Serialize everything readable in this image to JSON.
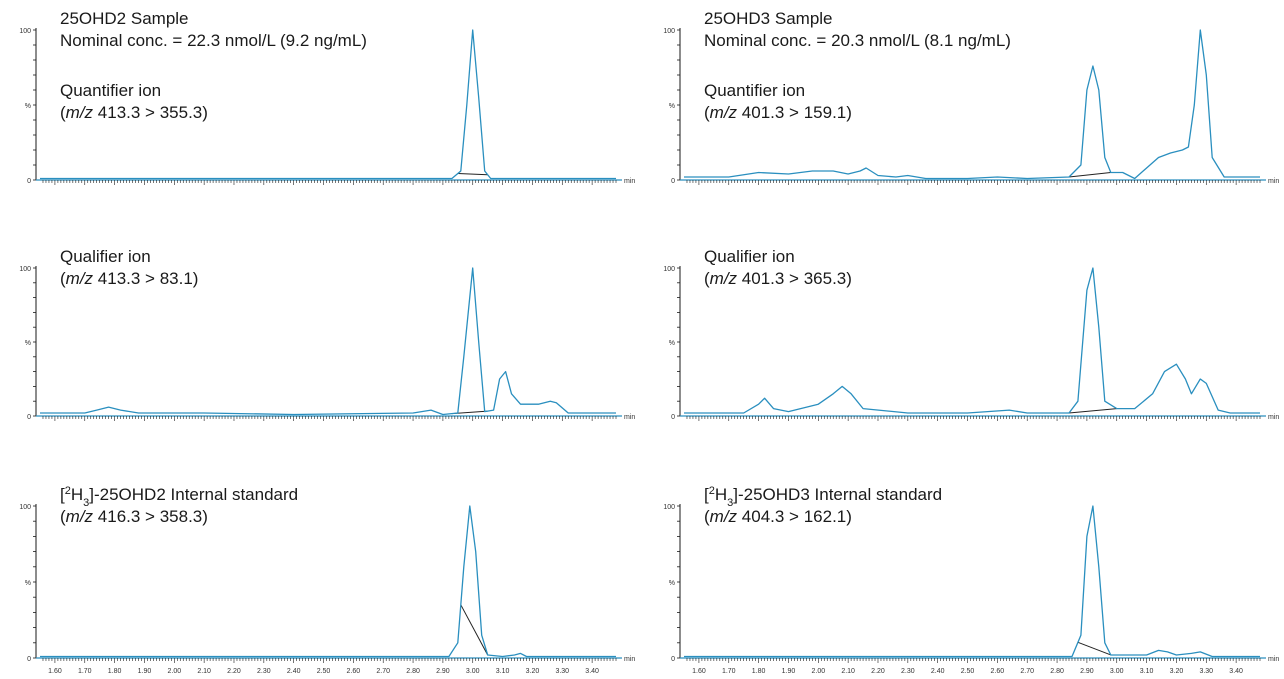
{
  "trace_color": "#2a8fbf",
  "axis_color": "#1a1a1a",
  "baseline_color": "#222222",
  "x_unit": "min",
  "y_label": "%",
  "y_ticks": [
    "100",
    "0"
  ],
  "x_tick_labels": [
    "1.60",
    "1.70",
    "1.80",
    "1.90",
    "2.00",
    "2.10",
    "2.20",
    "2.30",
    "2.40",
    "2.50",
    "2.60",
    "2.70",
    "2.80",
    "2.90",
    "3.00",
    "3.10",
    "3.20",
    "3.30",
    "3.40"
  ],
  "chart_data": [
    {
      "type": "line",
      "title_lines": [
        "25OHD2 Sample",
        "Nominal conc. = 22.3 nmol/L (9.2 ng/mL)"
      ],
      "ion_label": "Quantifier ion",
      "transition": {
        "prefix": "(",
        "mz": "m/z",
        "rest": " 413.3 > 355.3)"
      },
      "xlim": [
        1.55,
        3.48
      ],
      "ylim": [
        0,
        100
      ],
      "series": [
        {
          "points": [
            [
              1.55,
              1
            ],
            [
              2.85,
              1
            ],
            [
              2.93,
              1
            ],
            [
              2.96,
              6
            ],
            [
              2.98,
              50
            ],
            [
              3.0,
              100
            ],
            [
              3.02,
              55
            ],
            [
              3.04,
              6
            ],
            [
              3.06,
              1
            ],
            [
              3.48,
              1
            ]
          ]
        }
      ],
      "integration": [
        2.95,
        3.05
      ]
    },
    {
      "type": "line",
      "title_lines": [
        "25OHD3 Sample",
        "Nominal conc. = 20.3 nmol/L (8.1 ng/mL)"
      ],
      "ion_label": "Quantifier ion",
      "transition": {
        "prefix": "(",
        "mz": "m/z",
        "rest": " 401.3 > 159.1)"
      },
      "xlim": [
        1.55,
        3.48
      ],
      "ylim": [
        0,
        100
      ],
      "series": [
        {
          "points": [
            [
              1.55,
              2
            ],
            [
              1.7,
              2
            ],
            [
              1.8,
              5
            ],
            [
              1.9,
              4
            ],
            [
              1.98,
              6
            ],
            [
              2.05,
              6
            ],
            [
              2.1,
              4
            ],
            [
              2.14,
              6
            ],
            [
              2.16,
              8
            ],
            [
              2.2,
              3
            ],
            [
              2.26,
              2
            ],
            [
              2.3,
              3
            ],
            [
              2.36,
              1
            ],
            [
              2.5,
              1
            ],
            [
              2.6,
              2
            ],
            [
              2.7,
              1
            ],
            [
              2.84,
              2
            ],
            [
              2.88,
              10
            ],
            [
              2.9,
              60
            ],
            [
              2.92,
              76
            ],
            [
              2.94,
              60
            ],
            [
              2.96,
              15
            ],
            [
              2.98,
              5
            ],
            [
              3.02,
              5
            ],
            [
              3.06,
              1
            ],
            [
              3.1,
              8
            ],
            [
              3.14,
              15
            ],
            [
              3.18,
              18
            ],
            [
              3.22,
              20
            ],
            [
              3.24,
              22
            ],
            [
              3.26,
              50
            ],
            [
              3.28,
              100
            ],
            [
              3.3,
              70
            ],
            [
              3.32,
              15
            ],
            [
              3.36,
              2
            ],
            [
              3.48,
              2
            ]
          ]
        }
      ],
      "integration": [
        2.84,
        2.98
      ]
    },
    {
      "type": "line",
      "title_lines": [
        "Qualifier ion"
      ],
      "ion_label": "",
      "transition": {
        "prefix": " (",
        "mz": "m/z",
        "rest": " 413.3 > 83.1)"
      },
      "xlim": [
        1.55,
        3.48
      ],
      "ylim": [
        0,
        100
      ],
      "series": [
        {
          "points": [
            [
              1.55,
              2
            ],
            [
              1.7,
              2
            ],
            [
              1.74,
              4
            ],
            [
              1.78,
              6
            ],
            [
              1.82,
              4
            ],
            [
              1.88,
              2
            ],
            [
              2.1,
              2
            ],
            [
              2.4,
              1
            ],
            [
              2.8,
              2
            ],
            [
              2.86,
              4
            ],
            [
              2.9,
              1
            ],
            [
              2.95,
              2
            ],
            [
              2.97,
              40
            ],
            [
              3.0,
              100
            ],
            [
              3.02,
              50
            ],
            [
              3.04,
              3
            ],
            [
              3.07,
              4
            ],
            [
              3.09,
              25
            ],
            [
              3.11,
              30
            ],
            [
              3.13,
              15
            ],
            [
              3.16,
              8
            ],
            [
              3.22,
              8
            ],
            [
              3.26,
              10
            ],
            [
              3.28,
              9
            ],
            [
              3.32,
              2
            ],
            [
              3.48,
              2
            ]
          ]
        }
      ],
      "integration": [
        2.93,
        3.05
      ]
    },
    {
      "type": "line",
      "title_lines": [
        "Qualifier ion"
      ],
      "ion_label": "",
      "transition": {
        "prefix": "(",
        "mz": "m/z",
        "rest": " 401.3 > 365.3)"
      },
      "xlim": [
        1.55,
        3.48
      ],
      "ylim": [
        0,
        100
      ],
      "series": [
        {
          "points": [
            [
              1.55,
              2
            ],
            [
              1.75,
              2
            ],
            [
              1.8,
              8
            ],
            [
              1.82,
              12
            ],
            [
              1.85,
              5
            ],
            [
              1.9,
              3
            ],
            [
              2.0,
              8
            ],
            [
              2.05,
              15
            ],
            [
              2.08,
              20
            ],
            [
              2.11,
              15
            ],
            [
              2.15,
              5
            ],
            [
              2.3,
              2
            ],
            [
              2.5,
              2
            ],
            [
              2.64,
              4
            ],
            [
              2.7,
              2
            ],
            [
              2.84,
              2
            ],
            [
              2.87,
              10
            ],
            [
              2.9,
              85
            ],
            [
              2.92,
              100
            ],
            [
              2.94,
              60
            ],
            [
              2.96,
              10
            ],
            [
              3.0,
              5
            ],
            [
              3.06,
              5
            ],
            [
              3.12,
              15
            ],
            [
              3.16,
              30
            ],
            [
              3.2,
              35
            ],
            [
              3.23,
              25
            ],
            [
              3.25,
              15
            ],
            [
              3.28,
              25
            ],
            [
              3.3,
              22
            ],
            [
              3.34,
              4
            ],
            [
              3.38,
              2
            ],
            [
              3.48,
              2
            ]
          ]
        }
      ],
      "integration": [
        2.84,
        3.0
      ]
    },
    {
      "type": "line",
      "title_lines": [
        "[2H3]-25OHD2 Internal standard"
      ],
      "ion_label": "",
      "transition": {
        "prefix": "(",
        "mz": "m/z",
        "rest": " 416.3 > 358.3)"
      },
      "xlim": [
        1.55,
        3.48
      ],
      "ylim": [
        0,
        100
      ],
      "series": [
        {
          "points": [
            [
              1.55,
              1
            ],
            [
              2.92,
              1
            ],
            [
              2.95,
              10
            ],
            [
              2.97,
              60
            ],
            [
              2.99,
              100
            ],
            [
              3.01,
              70
            ],
            [
              3.03,
              15
            ],
            [
              3.05,
              2
            ],
            [
              3.1,
              1
            ],
            [
              3.14,
              2
            ],
            [
              3.16,
              3
            ],
            [
              3.18,
              1
            ],
            [
              3.48,
              1
            ]
          ]
        }
      ],
      "integration": [
        2.96,
        3.05
      ]
    },
    {
      "type": "line",
      "title_lines": [
        "[2H3]-25OHD3 Internal standard"
      ],
      "ion_label": "",
      "transition": {
        "prefix": "(",
        "mz": "m/z",
        "rest": " 404.3 > 162.1)"
      },
      "xlim": [
        1.55,
        3.48
      ],
      "ylim": [
        0,
        100
      ],
      "series": [
        {
          "points": [
            [
              1.55,
              1
            ],
            [
              2.85,
              1
            ],
            [
              2.88,
              15
            ],
            [
              2.9,
              80
            ],
            [
              2.92,
              100
            ],
            [
              2.94,
              60
            ],
            [
              2.96,
              10
            ],
            [
              2.98,
              2
            ],
            [
              3.1,
              2
            ],
            [
              3.14,
              5
            ],
            [
              3.17,
              4
            ],
            [
              3.2,
              2
            ],
            [
              3.25,
              3
            ],
            [
              3.28,
              4
            ],
            [
              3.32,
              1
            ],
            [
              3.48,
              1
            ]
          ]
        }
      ],
      "integration": [
        2.87,
        2.98
      ]
    }
  ]
}
